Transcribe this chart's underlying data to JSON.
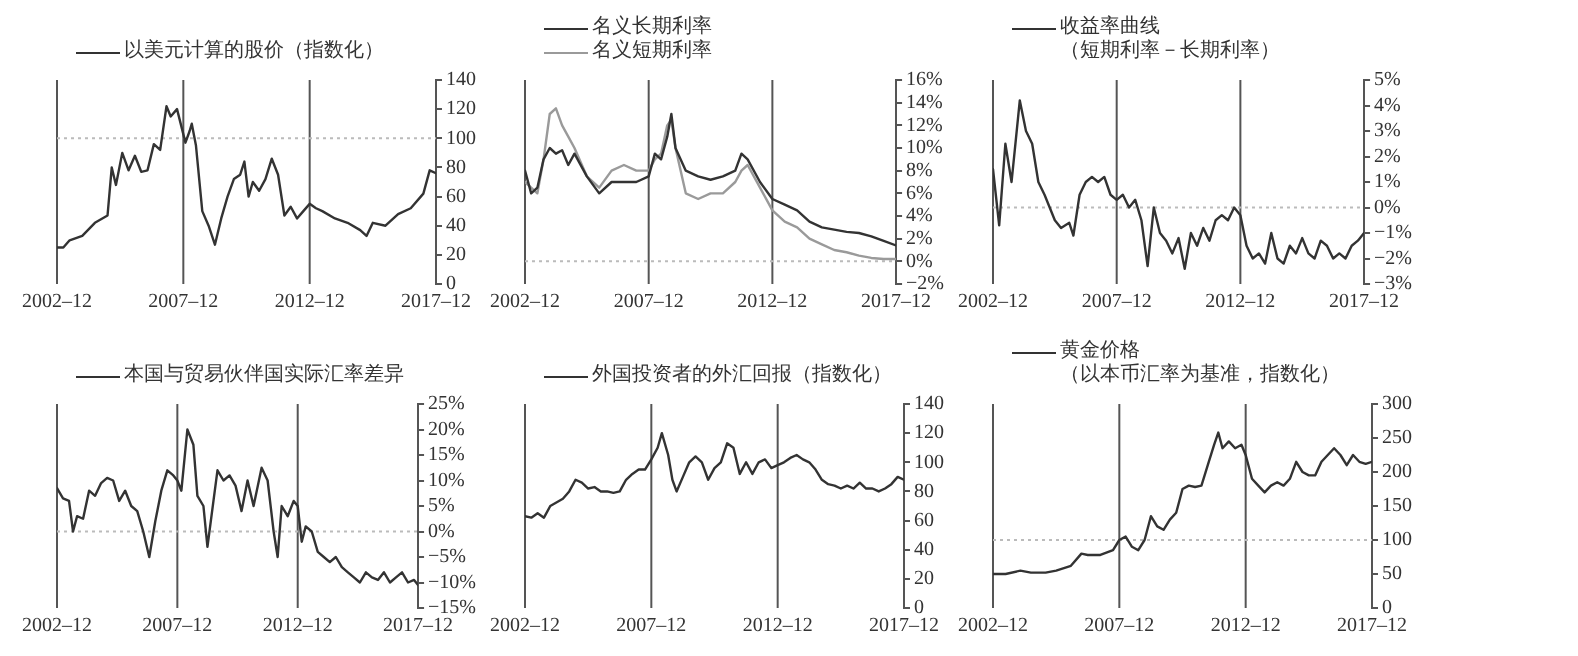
{
  "chart_data": [
    {
      "type": "line",
      "legend": "top",
      "grid": false,
      "xlim": [
        "2002-12",
        "2017-12"
      ],
      "xticks": [
        {
          "value": "2002-12",
          "label": "2002–12"
        },
        {
          "value": "2007-12",
          "label": "2007–12"
        },
        {
          "value": "2012-12",
          "label": "2012–12"
        },
        {
          "value": "2017-12",
          "label": "2017–12"
        }
      ],
      "ylim": [
        0,
        140
      ],
      "yticks": [
        0,
        20,
        40,
        60,
        80,
        100,
        120,
        140
      ],
      "x": [
        "2002-12",
        "2003-03",
        "2003-06",
        "2003-12",
        "2004-06",
        "2004-12",
        "2005-02",
        "2005-04",
        "2005-07",
        "2005-10",
        "2006-01",
        "2006-04",
        "2006-07",
        "2006-10",
        "2007-01",
        "2007-04",
        "2007-06",
        "2007-09",
        "2008-01",
        "2008-03",
        "2008-04",
        "2008-06",
        "2008-09",
        "2008-12",
        "2009-03",
        "2009-06",
        "2009-09",
        "2009-12",
        "2010-03",
        "2010-05",
        "2010-07",
        "2010-09",
        "2010-12",
        "2011-03",
        "2011-06",
        "2011-09",
        "2011-12",
        "2012-03",
        "2012-06",
        "2012-09",
        "2012-12",
        "2013-03",
        "2013-06",
        "2013-12",
        "2014-06",
        "2014-12",
        "2015-03",
        "2015-06",
        "2015-12",
        "2016-06",
        "2016-12",
        "2017-06",
        "2017-09",
        "2017-12"
      ],
      "series": [
        {
          "name": "以美元计算的股价（指数化）",
          "color": "#333333",
          "values": [
            25,
            25,
            30,
            33,
            42,
            47,
            80,
            68,
            90,
            78,
            88,
            77,
            78,
            96,
            92,
            122,
            115,
            120,
            97,
            105,
            110,
            95,
            50,
            40,
            27,
            45,
            60,
            72,
            75,
            84,
            60,
            70,
            64,
            72,
            86,
            75,
            47,
            53,
            45,
            50,
            55,
            52,
            50,
            45,
            42,
            37,
            33,
            42,
            40,
            48,
            52,
            62,
            78,
            76
          ]
        }
      ],
      "ref_lines": [
        {
          "axis": "x",
          "value": "2007-12",
          "color": "#555555",
          "line_style": "solid"
        },
        {
          "axis": "x",
          "value": "2012-12",
          "color": "#555555",
          "line_style": "solid"
        },
        {
          "axis": "y",
          "value": 100,
          "color": "#bbbbbb",
          "line_style": "dotted"
        }
      ]
    },
    {
      "type": "line",
      "legend": "top",
      "grid": false,
      "xlim": [
        "2002-12",
        "2017-12"
      ],
      "xticks": [
        {
          "value": "2002-12",
          "label": "2002–12"
        },
        {
          "value": "2007-12",
          "label": "2007–12"
        },
        {
          "value": "2012-12",
          "label": "2012–12"
        },
        {
          "value": "2017-12",
          "label": "2017–12"
        }
      ],
      "ylim": [
        -2,
        16
      ],
      "yticks": [
        {
          "value": -2,
          "label": "−2%"
        },
        {
          "value": 0,
          "label": "0%"
        },
        {
          "value": 2,
          "label": "2%"
        },
        {
          "value": 4,
          "label": "4%"
        },
        {
          "value": 6,
          "label": "6%"
        },
        {
          "value": 8,
          "label": "8%"
        },
        {
          "value": 10,
          "label": "10%"
        },
        {
          "value": 12,
          "label": "12%"
        },
        {
          "value": 14,
          "label": "14%"
        },
        {
          "value": 16,
          "label": "16%"
        }
      ],
      "x": [
        "2002-12",
        "2003-03",
        "2003-06",
        "2003-09",
        "2003-12",
        "2004-03",
        "2004-06",
        "2004-09",
        "2004-12",
        "2005-06",
        "2005-12",
        "2006-06",
        "2006-12",
        "2007-06",
        "2007-12",
        "2008-03",
        "2008-06",
        "2008-09",
        "2008-11",
        "2009-01",
        "2009-06",
        "2009-12",
        "2010-06",
        "2010-12",
        "2011-06",
        "2011-09",
        "2011-12",
        "2012-06",
        "2012-12",
        "2013-06",
        "2013-12",
        "2014-06",
        "2014-12",
        "2015-06",
        "2015-12",
        "2016-06",
        "2016-12",
        "2017-06",
        "2017-12"
      ],
      "series": [
        {
          "name": "名义长期利率",
          "color": "#333333",
          "values": [
            8,
            6,
            6.5,
            9,
            10,
            9.5,
            9.8,
            8.5,
            9.5,
            7.5,
            6,
            7,
            7,
            7,
            7.5,
            9.5,
            9,
            11,
            13,
            10,
            8,
            7.5,
            7.2,
            7.5,
            8,
            9.5,
            9,
            7,
            5.5,
            5,
            4.5,
            3.5,
            3,
            2.8,
            2.6,
            2.5,
            2.2,
            1.8,
            1.4
          ]
        },
        {
          "name": "名义短期利率",
          "color": "#9a9a9a",
          "values": [
            7,
            6.5,
            6,
            9,
            13,
            13.5,
            12,
            11,
            10,
            7.5,
            6.5,
            8,
            8.5,
            8,
            8,
            9,
            9.5,
            12,
            12.5,
            10,
            6,
            5.5,
            6,
            6,
            7,
            8,
            8.5,
            6.5,
            4.5,
            3.5,
            3,
            2,
            1.5,
            1,
            0.8,
            0.5,
            0.3,
            0.2,
            0.2
          ]
        }
      ],
      "ref_lines": [
        {
          "axis": "x",
          "value": "2007-12",
          "color": "#555555",
          "line_style": "solid"
        },
        {
          "axis": "x",
          "value": "2012-12",
          "color": "#555555",
          "line_style": "solid"
        },
        {
          "axis": "y",
          "value": 0,
          "color": "#bbbbbb",
          "line_style": "dotted"
        }
      ]
    },
    {
      "type": "line",
      "legend": "top",
      "grid": false,
      "xlim": [
        "2002-12",
        "2017-12"
      ],
      "xticks": [
        {
          "value": "2002-12",
          "label": "2002–12"
        },
        {
          "value": "2007-12",
          "label": "2007–12"
        },
        {
          "value": "2012-12",
          "label": "2012–12"
        },
        {
          "value": "2017-12",
          "label": "2017–12"
        }
      ],
      "ylim": [
        -3,
        5
      ],
      "yticks": [
        {
          "value": -3,
          "label": "−3%"
        },
        {
          "value": -2,
          "label": "−2%"
        },
        {
          "value": -1,
          "label": "−1%"
        },
        {
          "value": 0,
          "label": "0%"
        },
        {
          "value": 1,
          "label": "1%"
        },
        {
          "value": 2,
          "label": "2%"
        },
        {
          "value": 3,
          "label": "3%"
        },
        {
          "value": 4,
          "label": "4%"
        },
        {
          "value": 5,
          "label": "5%"
        }
      ],
      "x": [
        "2002-12",
        "2003-03",
        "2003-06",
        "2003-09",
        "2004-01",
        "2004-04",
        "2004-07",
        "2004-10",
        "2005-01",
        "2005-06",
        "2005-09",
        "2006-01",
        "2006-03",
        "2006-06",
        "2006-09",
        "2006-12",
        "2007-03",
        "2007-06",
        "2007-09",
        "2007-12",
        "2008-03",
        "2008-06",
        "2008-09",
        "2008-12",
        "2009-03",
        "2009-06",
        "2009-09",
        "2009-12",
        "2010-03",
        "2010-06",
        "2010-09",
        "2010-12",
        "2011-03",
        "2011-06",
        "2011-09",
        "2011-12",
        "2012-03",
        "2012-06",
        "2012-09",
        "2012-12",
        "2013-03",
        "2013-06",
        "2013-09",
        "2013-12",
        "2014-03",
        "2014-06",
        "2014-09",
        "2014-12",
        "2015-03",
        "2015-06",
        "2015-09",
        "2015-12",
        "2016-03",
        "2016-06",
        "2016-09",
        "2016-12",
        "2017-03",
        "2017-06",
        "2017-09",
        "2017-12"
      ],
      "series": [
        {
          "name": "收益率曲线（短期利率－长期利率）",
          "color": "#333333",
          "values": [
            1.5,
            -0.7,
            2.5,
            1,
            4.2,
            3,
            2.5,
            1,
            0.5,
            -0.5,
            -0.8,
            -0.6,
            -1.1,
            0.5,
            1,
            1.2,
            1,
            1.2,
            0.5,
            0.3,
            0.5,
            0,
            0.3,
            -0.5,
            -2.3,
            0,
            -1,
            -1.3,
            -1.8,
            -1.2,
            -2.4,
            -1,
            -1.5,
            -0.8,
            -1.3,
            -0.5,
            -0.3,
            -0.5,
            0,
            -0.3,
            -1.5,
            -2,
            -1.8,
            -2.2,
            -1,
            -2,
            -2.2,
            -1.5,
            -1.8,
            -1.2,
            -1.8,
            -2,
            -1.3,
            -1.5,
            -2,
            -1.8,
            -2,
            -1.5,
            -1.3,
            -1
          ]
        }
      ],
      "ref_lines": [
        {
          "axis": "x",
          "value": "2007-12",
          "color": "#555555",
          "line_style": "solid"
        },
        {
          "axis": "x",
          "value": "2012-12",
          "color": "#555555",
          "line_style": "solid"
        },
        {
          "axis": "y",
          "value": 0,
          "color": "#bbbbbb",
          "line_style": "dotted"
        }
      ]
    },
    {
      "type": "line",
      "legend": "top",
      "grid": false,
      "xlim": [
        "2002-12",
        "2017-12"
      ],
      "xticks": [
        {
          "value": "2002-12",
          "label": "2002–12"
        },
        {
          "value": "2007-12",
          "label": "2007–12"
        },
        {
          "value": "2012-12",
          "label": "2012–12"
        },
        {
          "value": "2017-12",
          "label": "2017–12"
        }
      ],
      "ylim": [
        -15,
        25
      ],
      "yticks": [
        {
          "value": -15,
          "label": "−15%"
        },
        {
          "value": -10,
          "label": "−10%"
        },
        {
          "value": -5,
          "label": "−5%"
        },
        {
          "value": 0,
          "label": "0%"
        },
        {
          "value": 5,
          "label": "5%"
        },
        {
          "value": 10,
          "label": "10%"
        },
        {
          "value": 15,
          "label": "15%"
        },
        {
          "value": 20,
          "label": "20%"
        },
        {
          "value": 25,
          "label": "25%"
        }
      ],
      "x": [
        "2002-12",
        "2003-03",
        "2003-06",
        "2003-08",
        "2003-10",
        "2004-01",
        "2004-04",
        "2004-07",
        "2004-10",
        "2005-01",
        "2005-04",
        "2005-07",
        "2005-10",
        "2006-01",
        "2006-04",
        "2006-07",
        "2006-10",
        "2007-01",
        "2007-04",
        "2007-07",
        "2007-10",
        "2007-12",
        "2008-02",
        "2008-05",
        "2008-08",
        "2008-10",
        "2009-01",
        "2009-03",
        "2009-06",
        "2009-08",
        "2009-11",
        "2010-02",
        "2010-05",
        "2010-08",
        "2010-11",
        "2011-02",
        "2011-06",
        "2011-09",
        "2011-12",
        "2012-02",
        "2012-04",
        "2012-07",
        "2012-10",
        "2012-12",
        "2013-02",
        "2013-04",
        "2013-07",
        "2013-10",
        "2014-01",
        "2014-04",
        "2014-07",
        "2014-10",
        "2015-01",
        "2015-04",
        "2015-07",
        "2015-10",
        "2016-01",
        "2016-04",
        "2016-07",
        "2016-10",
        "2017-01",
        "2017-04",
        "2017-07",
        "2017-10",
        "2017-12"
      ],
      "series": [
        {
          "name": "本国与贸易伙伴国实际汇率差异",
          "color": "#333333",
          "values": [
            8.5,
            6.5,
            6,
            0,
            3,
            2.5,
            8,
            7,
            9.5,
            10.5,
            10,
            6,
            8,
            5,
            4,
            0,
            -5,
            2,
            8,
            12,
            11,
            10,
            8,
            20,
            17,
            7,
            5,
            -3,
            6,
            12,
            10,
            11,
            9,
            4,
            10,
            5,
            12.5,
            10,
            0,
            -5,
            5,
            3,
            6,
            5,
            -2,
            1,
            0,
            -4,
            -5,
            -6,
            -5,
            -7,
            -8,
            -9,
            -10,
            -8,
            -9,
            -9.5,
            -8,
            -10,
            -9,
            -8,
            -10,
            -9.5,
            -10.5
          ]
        }
      ],
      "ref_lines": [
        {
          "axis": "x",
          "value": "2007-12",
          "color": "#555555",
          "line_style": "solid"
        },
        {
          "axis": "x",
          "value": "2012-12",
          "color": "#555555",
          "line_style": "solid"
        },
        {
          "axis": "y",
          "value": 0,
          "color": "#bbbbbb",
          "line_style": "dotted"
        }
      ]
    },
    {
      "type": "line",
      "legend": "top",
      "grid": false,
      "xlim": [
        "2002-12",
        "2017-12"
      ],
      "xticks": [
        {
          "value": "2002-12",
          "label": "2002–12"
        },
        {
          "value": "2007-12",
          "label": "2007–12"
        },
        {
          "value": "2012-12",
          "label": "2012–12"
        },
        {
          "value": "2017-12",
          "label": "2017–12"
        }
      ],
      "ylim": [
        0,
        140
      ],
      "yticks": [
        0,
        20,
        40,
        60,
        80,
        100,
        120,
        140
      ],
      "x": [
        "2002-12",
        "2003-03",
        "2003-06",
        "2003-09",
        "2003-12",
        "2004-06",
        "2004-09",
        "2004-12",
        "2005-03",
        "2005-06",
        "2005-09",
        "2005-12",
        "2006-03",
        "2006-06",
        "2006-09",
        "2006-12",
        "2007-03",
        "2007-06",
        "2007-09",
        "2007-12",
        "2008-03",
        "2008-05",
        "2008-08",
        "2008-10",
        "2008-12",
        "2009-03",
        "2009-06",
        "2009-09",
        "2009-12",
        "2010-03",
        "2010-06",
        "2010-09",
        "2010-12",
        "2011-03",
        "2011-06",
        "2011-09",
        "2011-12",
        "2012-03",
        "2012-06",
        "2012-09",
        "2012-12",
        "2013-03",
        "2013-06",
        "2013-09",
        "2013-12",
        "2014-03",
        "2014-06",
        "2014-09",
        "2014-12",
        "2015-03",
        "2015-06",
        "2015-09",
        "2015-12",
        "2016-03",
        "2016-06",
        "2016-09",
        "2016-12",
        "2017-03",
        "2017-06",
        "2017-09",
        "2017-12"
      ],
      "series": [
        {
          "name": "外国投资者的外汇回报（指数化）",
          "color": "#333333",
          "values": [
            63,
            62,
            65,
            62,
            70,
            75,
            80,
            88,
            86,
            82,
            83,
            80,
            80,
            79,
            80,
            88,
            92,
            95,
            95,
            102,
            110,
            120,
            105,
            88,
            80,
            90,
            100,
            104,
            100,
            88,
            96,
            100,
            113,
            110,
            92,
            100,
            92,
            100,
            102,
            96,
            98,
            100,
            103,
            105,
            102,
            100,
            95,
            88,
            85,
            84,
            82,
            84,
            82,
            86,
            82,
            82,
            80,
            82,
            85,
            90,
            88
          ]
        }
      ],
      "ref_lines": [
        {
          "axis": "x",
          "value": "2007-12",
          "color": "#555555",
          "line_style": "solid"
        },
        {
          "axis": "x",
          "value": "2012-12",
          "color": "#555555",
          "line_style": "solid"
        }
      ]
    },
    {
      "type": "line",
      "legend": "top",
      "grid": false,
      "xlim": [
        "2002-12",
        "2017-12"
      ],
      "xticks": [
        {
          "value": "2002-12",
          "label": "2002–12"
        },
        {
          "value": "2007-12",
          "label": "2007–12"
        },
        {
          "value": "2012-12",
          "label": "2012–12"
        },
        {
          "value": "2017-12",
          "label": "2017–12"
        }
      ],
      "ylim": [
        0,
        300
      ],
      "yticks": [
        0,
        50,
        100,
        150,
        200,
        250,
        300
      ],
      "x": [
        "2002-12",
        "2003-06",
        "2004-01",
        "2004-06",
        "2005-01",
        "2005-06",
        "2006-01",
        "2006-06",
        "2006-09",
        "2007-03",
        "2007-09",
        "2007-12",
        "2008-03",
        "2008-06",
        "2008-09",
        "2008-12",
        "2009-03",
        "2009-06",
        "2009-09",
        "2009-12",
        "2010-03",
        "2010-06",
        "2010-09",
        "2010-12",
        "2011-03",
        "2011-06",
        "2011-09",
        "2011-11",
        "2012-01",
        "2012-04",
        "2012-07",
        "2012-10",
        "2012-12",
        "2013-03",
        "2013-06",
        "2013-09",
        "2013-12",
        "2014-03",
        "2014-06",
        "2014-09",
        "2014-12",
        "2015-03",
        "2015-06",
        "2015-09",
        "2015-12",
        "2016-03",
        "2016-06",
        "2016-09",
        "2016-12",
        "2017-03",
        "2017-06",
        "2017-09",
        "2017-12"
      ],
      "series": [
        {
          "name": "黄金价格（以本币汇率为基准，指数化）",
          "color": "#333333",
          "values": [
            50,
            50,
            55,
            52,
            52,
            55,
            62,
            80,
            78,
            78,
            85,
            100,
            105,
            90,
            85,
            100,
            135,
            120,
            115,
            130,
            140,
            175,
            180,
            178,
            180,
            210,
            240,
            258,
            235,
            245,
            235,
            240,
            225,
            190,
            180,
            170,
            180,
            185,
            180,
            190,
            215,
            200,
            195,
            195,
            215,
            225,
            235,
            225,
            210,
            225,
            215,
            212,
            215
          ]
        }
      ],
      "ref_lines": [
        {
          "axis": "x",
          "value": "2007-12",
          "color": "#555555",
          "line_style": "solid"
        },
        {
          "axis": "x",
          "value": "2012-12",
          "color": "#555555",
          "line_style": "solid"
        },
        {
          "axis": "y",
          "value": 100,
          "color": "#bbbbbb",
          "line_style": "dotted"
        }
      ]
    }
  ]
}
